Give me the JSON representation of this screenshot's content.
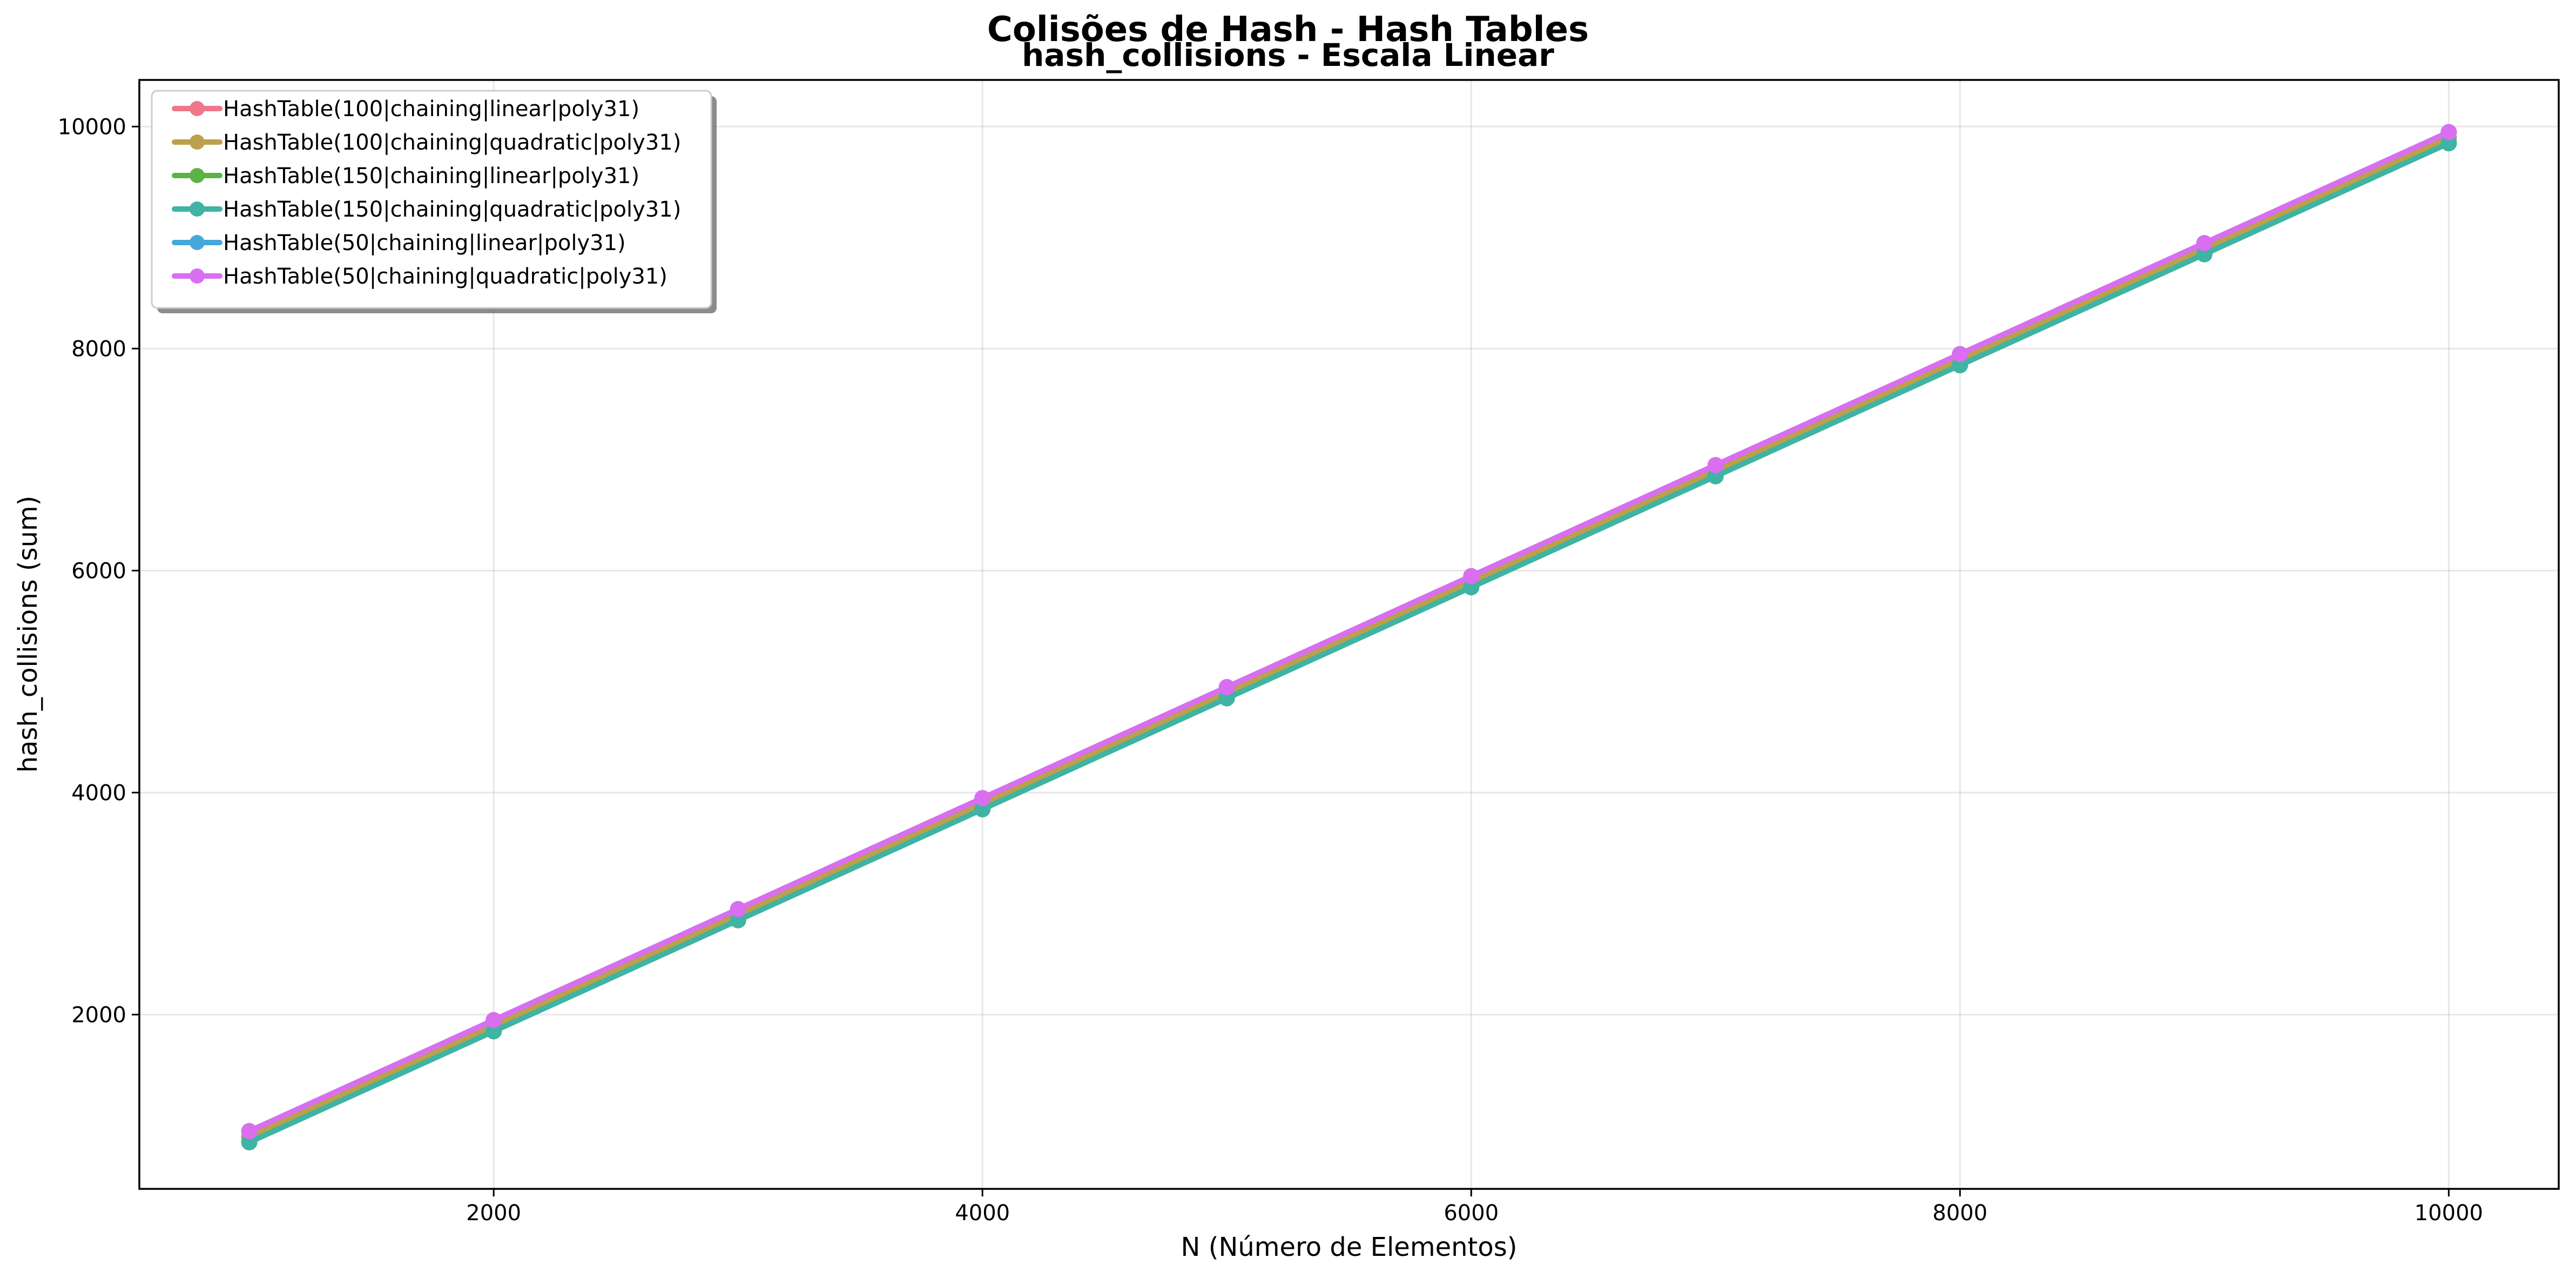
{
  "chart_data": {
    "type": "line",
    "suptitle": "Colisões de Hash - Hash Tables",
    "title": "hash_collisions - Escala Linear",
    "xlabel": "N (Número de Elementos)",
    "ylabel": "hash_collisions (sum)",
    "x": [
      1000,
      2000,
      3000,
      4000,
      5000,
      6000,
      7000,
      8000,
      9000,
      10000
    ],
    "xlim": [
      550,
      10450
    ],
    "ylim": [
      430,
      10420
    ],
    "xticks": [
      2000,
      4000,
      6000,
      8000,
      10000
    ],
    "yticks": [
      2000,
      4000,
      6000,
      8000,
      10000
    ],
    "xtick_labels": [
      "2000",
      "4000",
      "6000",
      "8000",
      "10000"
    ],
    "ytick_labels": [
      "2000",
      "4000",
      "6000",
      "8000",
      "10000"
    ],
    "grid": true,
    "legend_position": "top-left",
    "series": [
      {
        "name": "HashTable(100|chaining|linear|poly31)",
        "color": "#f0768a",
        "values": [
          900,
          1900,
          2900,
          3900,
          4900,
          5900,
          6900,
          7900,
          8900,
          9900
        ]
      },
      {
        "name": "HashTable(100|chaining|quadratic|poly31)",
        "color": "#bda04a",
        "values": [
          900,
          1900,
          2900,
          3900,
          4900,
          5900,
          6900,
          7900,
          8900,
          9900
        ]
      },
      {
        "name": "HashTable(150|chaining|linear|poly31)",
        "color": "#5cb345",
        "values": [
          850,
          1850,
          2850,
          3850,
          4850,
          5850,
          6850,
          7850,
          8850,
          9850
        ]
      },
      {
        "name": "HashTable(150|chaining|quadratic|poly31)",
        "color": "#3fb3a4",
        "values": [
          850,
          1850,
          2850,
          3850,
          4850,
          5850,
          6850,
          7850,
          8850,
          9850
        ]
      },
      {
        "name": "HashTable(50|chaining|linear|poly31)",
        "color": "#46a7dc",
        "values": [
          950,
          1950,
          2950,
          3950,
          4950,
          5950,
          6950,
          7950,
          8950,
          9950
        ]
      },
      {
        "name": "HashTable(50|chaining|quadratic|poly31)",
        "color": "#d96ef0",
        "values": [
          950,
          1950,
          2950,
          3950,
          4950,
          5950,
          6950,
          7950,
          8950,
          9950
        ]
      }
    ]
  }
}
